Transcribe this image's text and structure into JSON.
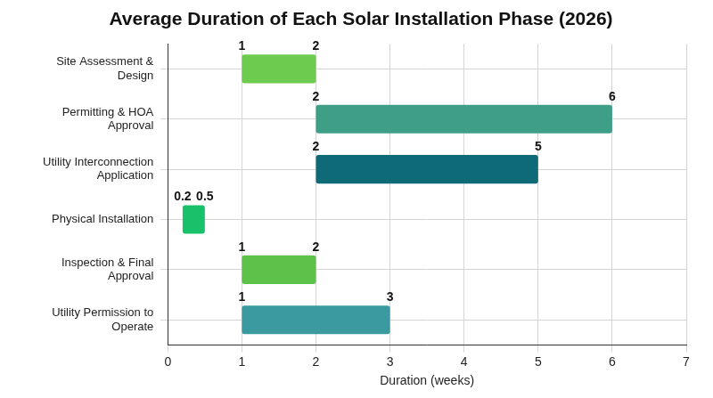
{
  "chart_data": {
    "type": "bar",
    "title": "Average Duration of Each Solar Installation Phase (2026)",
    "x_label": "Duration (weeks)",
    "categories": [
      "Site Assessment & Design",
      "Permitting & HOA Approval",
      "Utility Interconnection Application",
      "Physical Installation",
      "Inspection & Final Approval",
      "Utility Permission to Operate"
    ],
    "values": [
      [
        1,
        2
      ],
      [
        2,
        6
      ],
      [
        2,
        5
      ],
      [
        0.2,
        0.5
      ],
      [
        1,
        2
      ],
      [
        1,
        3
      ]
    ],
    "colors": [
      "#6dcb4f",
      "#3f9e86",
      "#0f6a78",
      "#19c26a",
      "#5cc24a",
      "#3a9aa0"
    ],
    "orientation": "horizontal",
    "xlim": [
      0,
      7
    ],
    "xticks": [
      0,
      1,
      2,
      3,
      4,
      5,
      6,
      7
    ],
    "grid": true,
    "data_labels": true
  }
}
